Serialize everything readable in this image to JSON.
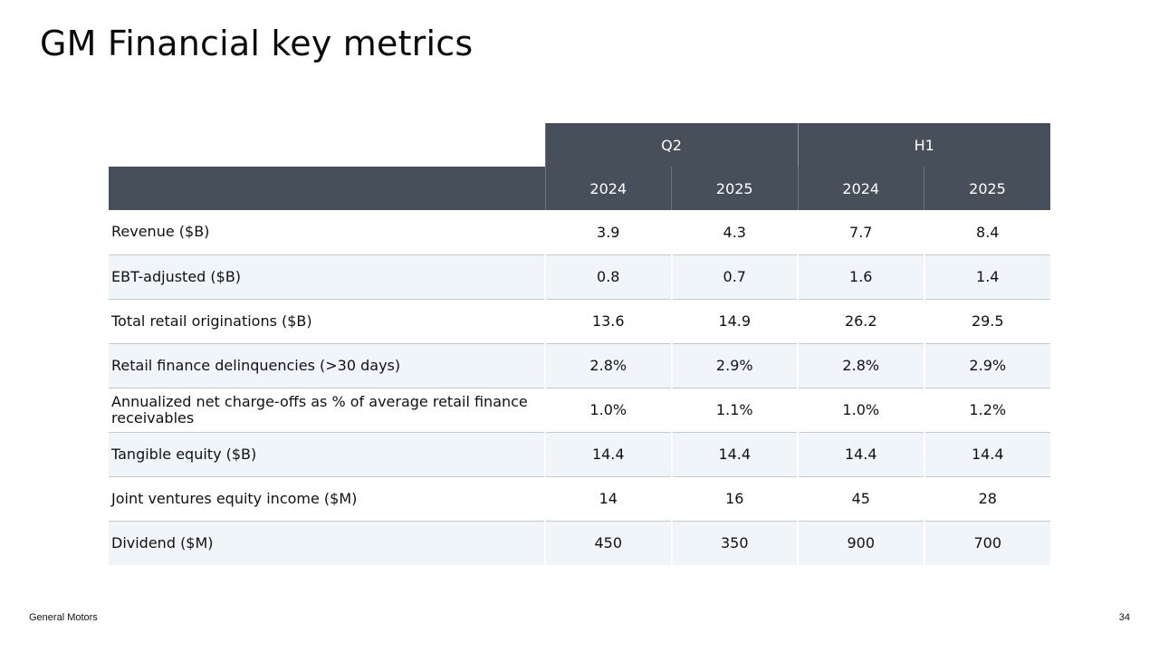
{
  "title": "GM Financial key metrics",
  "table": {
    "groups": [
      "Q2",
      "H1"
    ],
    "years": [
      "2024",
      "2025",
      "2024",
      "2025"
    ],
    "rows": [
      {
        "label": "Revenue ($B)",
        "values": [
          "3.9",
          "4.3",
          "7.7",
          "8.4"
        ]
      },
      {
        "label": "EBT-adjusted ($B)",
        "values": [
          "0.8",
          "0.7",
          "1.6",
          "1.4"
        ]
      },
      {
        "label": "Total retail originations ($B)",
        "values": [
          "13.6",
          "14.9",
          "26.2",
          "29.5"
        ]
      },
      {
        "label": "Retail finance delinquencies (>30 days)",
        "values": [
          "2.8%",
          "2.9%",
          "2.8%",
          "2.9%"
        ]
      },
      {
        "label": "Annualized net charge-offs as % of average retail finance receivables",
        "values": [
          "1.0%",
          "1.1%",
          "1.0%",
          "1.2%"
        ]
      },
      {
        "label": "Tangible equity ($B)",
        "values": [
          "14.4",
          "14.4",
          "14.4",
          "14.4"
        ]
      },
      {
        "label": "Joint ventures equity income ($M)",
        "values": [
          "14",
          "16",
          "45",
          "28"
        ]
      },
      {
        "label": "Dividend ($M)",
        "values": [
          "450",
          "350",
          "900",
          "700"
        ]
      }
    ]
  },
  "footer": {
    "company": "General Motors",
    "page_number": "34"
  },
  "colors": {
    "header_bg": "#474f5a",
    "alt_row_bg": "#f0f5f9",
    "row_divider": "#c4cad3"
  }
}
